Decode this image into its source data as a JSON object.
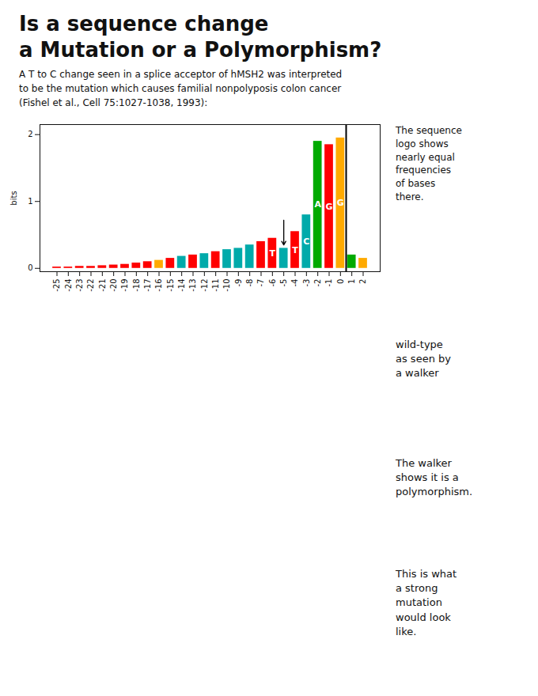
{
  "chart_data": {
    "type": "bar",
    "title": "Is a sequence change\na Mutation or a Polymorphism?",
    "subtitle": "A T to C change seen in a splice acceptor of hMSH2 was interpreted\nto be the mutation which causes familial nonpolyposis colon cancer\n(Fishel et al., Cell 75:1027-1038, 1993):",
    "x": [
      -25,
      -24,
      -23,
      -22,
      -21,
      -20,
      -19,
      -18,
      -17,
      -16,
      -15,
      -14,
      -13,
      -12,
      -11,
      -10,
      -9,
      -8,
      -7,
      -6,
      -5,
      -4,
      -3,
      -2,
      -1,
      0,
      1,
      2
    ],
    "values": [
      0.02,
      0.02,
      0.03,
      0.03,
      0.04,
      0.05,
      0.06,
      0.08,
      0.1,
      0.12,
      0.15,
      0.18,
      0.2,
      0.22,
      0.25,
      0.28,
      0.3,
      0.35,
      0.4,
      0.45,
      0.3,
      0.55,
      0.8,
      1.9,
      1.85,
      1.95,
      0.2,
      0.15
    ],
    "labels": [
      null,
      null,
      null,
      null,
      null,
      null,
      null,
      null,
      null,
      null,
      null,
      null,
      null,
      null,
      null,
      null,
      null,
      null,
      null,
      "T",
      null,
      "T",
      "C",
      "A",
      "G",
      "G",
      null,
      null
    ],
    "colors": [
      "#ff0000",
      "#ff0000",
      "#ff0000",
      "#ff0000",
      "#ff0000",
      "#ff0000",
      "#ff0000",
      "#ff0000",
      "#ff0000",
      "#ffaa00",
      "#ff0000",
      "#00aaaa",
      "#ff0000",
      "#00aaaa",
      "#ff0000",
      "#00aaaa",
      "#00aaaa",
      "#00aaaa",
      "#ff0000",
      "#ff0000",
      "#00aaaa",
      "#ff0000",
      "#00aaaa",
      "#00aa00",
      "#ff0000",
      "#ffaa00",
      "#00aa00",
      "#ffaa00"
    ],
    "xlim": [
      -26.5,
      3.5
    ],
    "xticks": [
      -25,
      -24,
      -23,
      -22,
      -21,
      -20,
      -19,
      -18,
      -17,
      -16,
      -15,
      -14,
      -13,
      -12,
      -11,
      -10,
      -9,
      -8,
      -7,
      -6,
      -5,
      -4,
      -3,
      -2,
      -1,
      0,
      1,
      2
    ],
    "ylim": [
      -0.05,
      2.15
    ],
    "yticks": [
      0,
      1,
      2
    ],
    "ylabel": "bits",
    "annotations": [
      {
        "text": "The sequence\nlogo shows\nnearly equal\nfrequencies\nof bases\nthere."
      },
      {
        "type": "arrow",
        "x": -5,
        "y": [
          0.72,
          0.35
        ]
      },
      {
        "type": "rule",
        "x": 0.5
      },
      {
        "text": "wild-type\nas seen by\na walker"
      },
      {
        "text": "The walker\nshows it is a\npolymorphism."
      },
      {
        "text": "This is what\na strong\nmutation\nwould look\nlike."
      }
    ]
  }
}
